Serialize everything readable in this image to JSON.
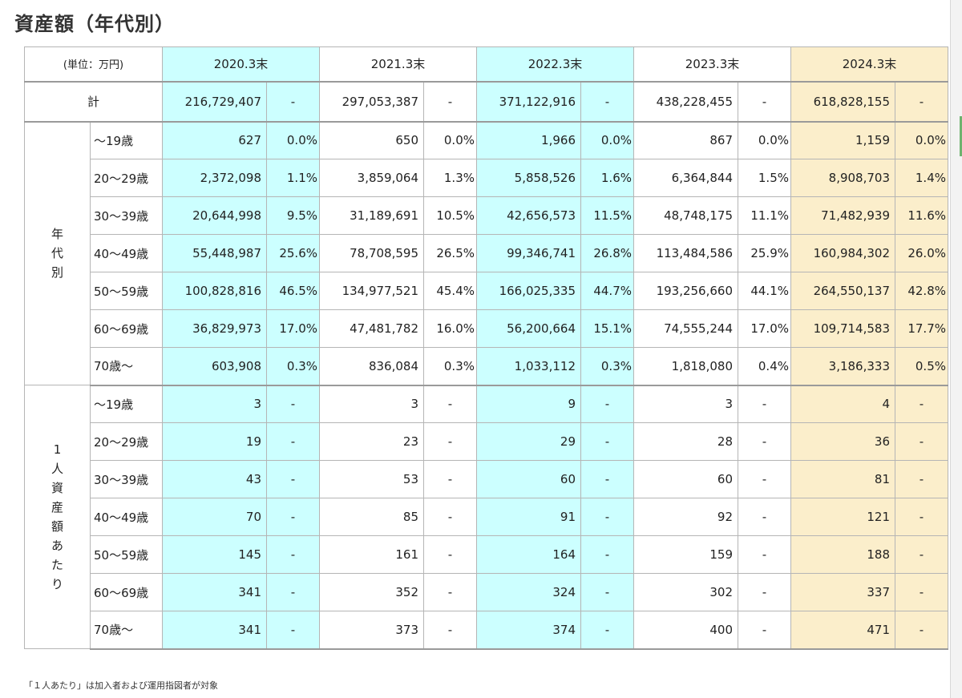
{
  "title": "資産額（年代別）",
  "unit_label": "(単位：万円)",
  "total_label": "計",
  "group_age_label": "年代別",
  "group_per_person_label": "1人資産額あたり",
  "footnote": "「１人あたり」は加入者および運用指図者が対象",
  "colors": {
    "highlight_cyan": "#ccffff",
    "highlight_yellow": "#fbeecb",
    "plain": "#ffffff",
    "border": "#b5b5b5"
  },
  "chart_data": {
    "type": "table",
    "title": "資産額（年代別）",
    "unit": "(単位：万円)",
    "years": [
      "2020.3末",
      "2021.3末",
      "2022.3末",
      "2023.3末",
      "2024.3末"
    ],
    "total": {
      "label": "計",
      "values": [
        "216,729,407",
        "297,053,387",
        "371,122,916",
        "438,228,455",
        "618,828,155"
      ],
      "shares": [
        "-",
        "-",
        "-",
        "-",
        "-"
      ]
    },
    "by_age": {
      "group_label": "年代別",
      "rows": [
        {
          "age": "～19歳",
          "values": [
            "627",
            "650",
            "1,966",
            "867",
            "1,159"
          ],
          "shares": [
            "0.0%",
            "0.0%",
            "0.0%",
            "0.0%",
            "0.0%"
          ]
        },
        {
          "age": "20～29歳",
          "values": [
            "2,372,098",
            "3,859,064",
            "5,858,526",
            "6,364,844",
            "8,908,703"
          ],
          "shares": [
            "1.1%",
            "1.3%",
            "1.6%",
            "1.5%",
            "1.4%"
          ]
        },
        {
          "age": "30～39歳",
          "values": [
            "20,644,998",
            "31,189,691",
            "42,656,573",
            "48,748,175",
            "71,482,939"
          ],
          "shares": [
            "9.5%",
            "10.5%",
            "11.5%",
            "11.1%",
            "11.6%"
          ]
        },
        {
          "age": "40～49歳",
          "values": [
            "55,448,987",
            "78,708,595",
            "99,346,741",
            "113,484,586",
            "160,984,302"
          ],
          "shares": [
            "25.6%",
            "26.5%",
            "26.8%",
            "25.9%",
            "26.0%"
          ]
        },
        {
          "age": "50～59歳",
          "values": [
            "100,828,816",
            "134,977,521",
            "166,025,335",
            "193,256,660",
            "264,550,137"
          ],
          "shares": [
            "46.5%",
            "45.4%",
            "44.7%",
            "44.1%",
            "42.8%"
          ]
        },
        {
          "age": "60～69歳",
          "values": [
            "36,829,973",
            "47,481,782",
            "56,200,664",
            "74,555,244",
            "109,714,583"
          ],
          "shares": [
            "17.0%",
            "16.0%",
            "15.1%",
            "17.0%",
            "17.7%"
          ]
        },
        {
          "age": "70歳～",
          "values": [
            "603,908",
            "836,084",
            "1,033,112",
            "1,818,080",
            "3,186,333"
          ],
          "shares": [
            "0.3%",
            "0.3%",
            "0.3%",
            "0.4%",
            "0.5%"
          ]
        }
      ]
    },
    "per_person": {
      "group_label": "1人資産額あたり",
      "rows": [
        {
          "age": "～19歳",
          "values": [
            "3",
            "3",
            "9",
            "3",
            "4"
          ],
          "shares": [
            "-",
            "-",
            "-",
            "-",
            "-"
          ]
        },
        {
          "age": "20～29歳",
          "values": [
            "19",
            "23",
            "29",
            "28",
            "36"
          ],
          "shares": [
            "-",
            "-",
            "-",
            "-",
            "-"
          ]
        },
        {
          "age": "30～39歳",
          "values": [
            "43",
            "53",
            "60",
            "60",
            "81"
          ],
          "shares": [
            "-",
            "-",
            "-",
            "-",
            "-"
          ]
        },
        {
          "age": "40～49歳",
          "values": [
            "70",
            "85",
            "91",
            "92",
            "121"
          ],
          "shares": [
            "-",
            "-",
            "-",
            "-",
            "-"
          ]
        },
        {
          "age": "50～59歳",
          "values": [
            "145",
            "161",
            "164",
            "159",
            "188"
          ],
          "shares": [
            "-",
            "-",
            "-",
            "-",
            "-"
          ]
        },
        {
          "age": "60～69歳",
          "values": [
            "341",
            "352",
            "324",
            "302",
            "337"
          ],
          "shares": [
            "-",
            "-",
            "-",
            "-",
            "-"
          ]
        },
        {
          "age": "70歳～",
          "values": [
            "341",
            "373",
            "374",
            "400",
            "471"
          ],
          "shares": [
            "-",
            "-",
            "-",
            "-",
            "-"
          ]
        }
      ]
    }
  }
}
